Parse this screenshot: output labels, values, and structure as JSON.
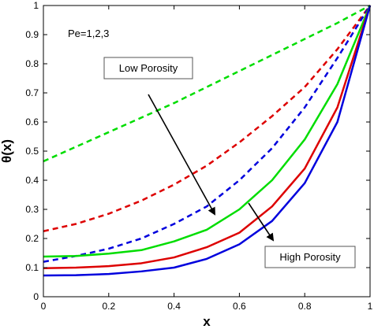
{
  "chart_data": {
    "type": "line",
    "xlabel": "x",
    "ylabel": "θ(x)",
    "xlim": [
      0,
      1
    ],
    "ylim": [
      0,
      1
    ],
    "xticks": [
      "0",
      "0.2",
      "0.4",
      "0.6",
      "0.8",
      "1"
    ],
    "yticks": [
      "0",
      "0.1",
      "0.2",
      "0.3",
      "0.4",
      "0.5",
      "0.6",
      "0.7",
      "0.8",
      "0.9",
      "1"
    ],
    "grid": false,
    "x": [
      0,
      0.1,
      0.2,
      0.3,
      0.4,
      0.5,
      0.6,
      0.7,
      0.8,
      0.9,
      1.0
    ],
    "series": [
      {
        "color": "#00dd00",
        "style": "dashed",
        "values": [
          0.465,
          0.515,
          0.565,
          0.615,
          0.665,
          0.72,
          0.775,
          0.83,
          0.885,
          0.94,
          1.0
        ]
      },
      {
        "color": "#dd0000",
        "style": "dashed",
        "values": [
          0.225,
          0.25,
          0.285,
          0.33,
          0.385,
          0.45,
          0.53,
          0.62,
          0.72,
          0.85,
          1.0
        ]
      },
      {
        "color": "#0000dd",
        "style": "dashed",
        "values": [
          0.12,
          0.14,
          0.165,
          0.2,
          0.25,
          0.31,
          0.4,
          0.51,
          0.65,
          0.82,
          1.0
        ]
      },
      {
        "color": "#00dd00",
        "style": "solid",
        "values": [
          0.138,
          0.14,
          0.148,
          0.16,
          0.19,
          0.23,
          0.3,
          0.4,
          0.54,
          0.73,
          1.0
        ]
      },
      {
        "color": "#dd0000",
        "style": "solid",
        "values": [
          0.098,
          0.1,
          0.105,
          0.115,
          0.135,
          0.17,
          0.22,
          0.31,
          0.44,
          0.65,
          1.0
        ]
      },
      {
        "color": "#0000dd",
        "style": "solid",
        "values": [
          0.073,
          0.074,
          0.078,
          0.087,
          0.1,
          0.13,
          0.18,
          0.26,
          0.39,
          0.6,
          1.0
        ]
      }
    ],
    "annotations": {
      "pe_label": "Pe=1,2,3",
      "low_porosity": "Low Porosity",
      "high_porosity": "High Porosity"
    }
  }
}
